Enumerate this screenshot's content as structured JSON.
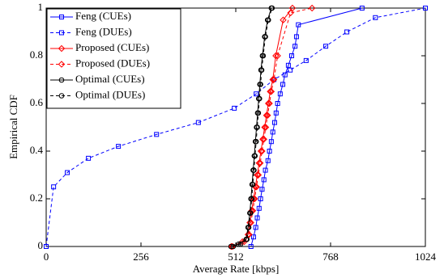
{
  "chart_data": {
    "type": "line",
    "xlabel": "Average Rate [kbps]",
    "ylabel": "Empirical CDF",
    "xlim": [
      0,
      1024
    ],
    "xticks": [
      0,
      256,
      512,
      768,
      1024
    ],
    "ylim": [
      0,
      1
    ],
    "yticks": [
      0,
      0.2,
      0.4,
      0.6,
      0.8,
      1
    ],
    "legend": "upper left",
    "series": [
      {
        "name": "Feng (CUEs)",
        "color": "#0000ff",
        "dash": false,
        "marker": "square",
        "x": [
          553,
          560,
          566,
          570,
          575,
          579,
          583,
          588,
          592,
          599,
          603,
          608,
          612,
          617,
          621,
          625,
          632,
          639,
          645,
          654,
          663,
          672,
          676,
          681,
          853
        ],
        "values": [
          0,
          0.04,
          0.08,
          0.12,
          0.16,
          0.2,
          0.24,
          0.28,
          0.32,
          0.36,
          0.4,
          0.44,
          0.48,
          0.52,
          0.56,
          0.6,
          0.64,
          0.68,
          0.72,
          0.76,
          0.8,
          0.84,
          0.88,
          0.93,
          1
        ]
      },
      {
        "name": "Feng (DUEs)",
        "color": "#0000ff",
        "dash": true,
        "marker": "square",
        "x": [
          0,
          20,
          57,
          114,
          195,
          298,
          411,
          508,
          567,
          615,
          659,
          702,
          755,
          812,
          889,
          1024
        ],
        "values": [
          0,
          0.25,
          0.31,
          0.37,
          0.42,
          0.47,
          0.52,
          0.58,
          0.64,
          0.7,
          0.74,
          0.78,
          0.84,
          0.9,
          0.96,
          1
        ]
      },
      {
        "name": "Proposed (CUEs)",
        "color": "#ff0000",
        "dash": false,
        "marker": "diamond",
        "x": [
          503,
          530,
          545,
          550,
          555,
          560,
          565,
          570,
          575,
          580,
          585,
          590,
          595,
          600,
          605,
          612,
          620,
          640,
          665
        ],
        "values": [
          0,
          0.02,
          0.05,
          0.1,
          0.15,
          0.2,
          0.25,
          0.3,
          0.35,
          0.4,
          0.45,
          0.5,
          0.55,
          0.6,
          0.65,
          0.7,
          0.8,
          0.95,
          1
        ]
      },
      {
        "name": "Proposed (DUEs)",
        "color": "#ff0000",
        "dash": true,
        "marker": "diamond",
        "x": [
          500,
          535,
          548,
          553,
          558,
          563,
          568,
          573,
          578,
          583,
          588,
          593,
          598,
          603,
          608,
          615,
          625,
          660,
          718
        ],
        "values": [
          0,
          0.02,
          0.05,
          0.1,
          0.15,
          0.2,
          0.25,
          0.3,
          0.35,
          0.4,
          0.45,
          0.5,
          0.55,
          0.6,
          0.65,
          0.7,
          0.8,
          0.98,
          1
        ]
      },
      {
        "name": "Optimal (CUEs)",
        "color": "#000000",
        "dash": false,
        "marker": "circle",
        "x": [
          499,
          520,
          540,
          545,
          550,
          553,
          556,
          559,
          562,
          565,
          568,
          571,
          574,
          577,
          580,
          584,
          590,
          598,
          608
        ],
        "values": [
          0,
          0.01,
          0.03,
          0.08,
          0.14,
          0.2,
          0.26,
          0.32,
          0.38,
          0.44,
          0.5,
          0.56,
          0.62,
          0.68,
          0.74,
          0.8,
          0.88,
          0.95,
          1
        ]
      },
      {
        "name": "Optimal (DUEs)",
        "color": "#000000",
        "dash": true,
        "marker": "circle",
        "x": [
          505,
          525,
          542,
          547,
          552,
          555,
          558,
          561,
          564,
          567,
          570,
          573,
          576,
          579,
          582,
          586,
          592,
          600,
          610
        ],
        "values": [
          0,
          0.01,
          0.03,
          0.08,
          0.14,
          0.2,
          0.26,
          0.32,
          0.38,
          0.44,
          0.5,
          0.56,
          0.62,
          0.68,
          0.74,
          0.8,
          0.88,
          0.95,
          1
        ]
      }
    ]
  }
}
